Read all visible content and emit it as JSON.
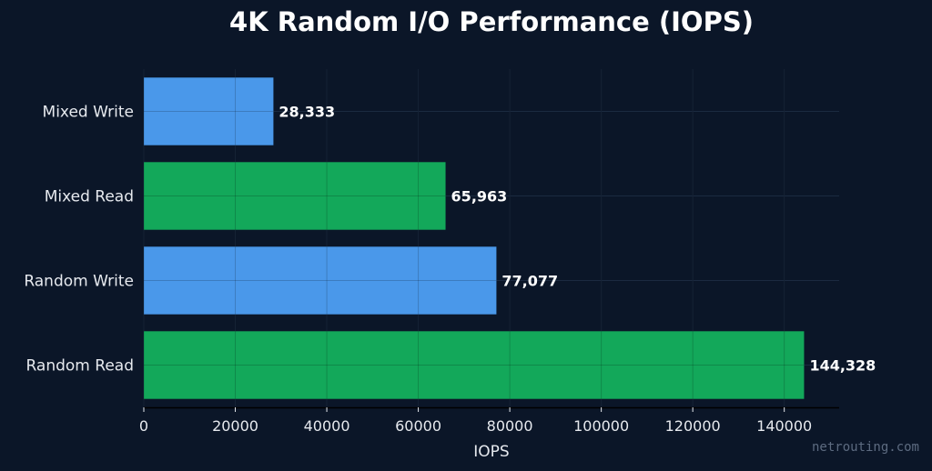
{
  "chart_data": {
    "type": "bar",
    "orientation": "horizontal",
    "title": "4K Random I/O Performance (IOPS)",
    "xlabel": "IOPS",
    "ylabel": "",
    "categories": [
      "Random Read",
      "Random Write",
      "Mixed Read",
      "Mixed Write"
    ],
    "values": [
      144328,
      77077,
      65963,
      28333
    ],
    "value_labels": [
      "144,328",
      "77,077",
      "65,963",
      "28,333"
    ],
    "bar_colors": [
      "#13a85a",
      "#4a98ea",
      "#13a85a",
      "#4a98ea"
    ],
    "xlim": [
      0,
      152000
    ],
    "xticks": [
      0,
      20000,
      40000,
      60000,
      80000,
      100000,
      120000,
      140000
    ],
    "xtick_labels": [
      "0",
      "20000",
      "40000",
      "60000",
      "80000",
      "100000",
      "120000",
      "140000"
    ],
    "grid": true,
    "background_color": "#0b1628"
  },
  "watermark": "netrouting.com"
}
